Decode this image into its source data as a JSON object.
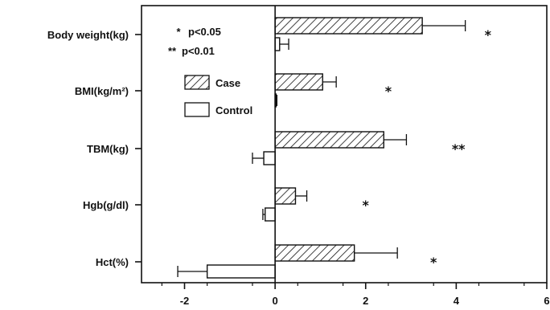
{
  "chart_data": {
    "type": "bar",
    "orientation": "horizontal",
    "categories": [
      "Body weight(kg)",
      "BMI(kg/m²)",
      "TBM(kg)",
      "Hgb(g/dl)",
      "Hct(%)"
    ],
    "series": [
      {
        "name": "Case",
        "pattern": "hatched",
        "values": [
          3.25,
          1.05,
          2.4,
          0.45,
          1.75
        ],
        "error": [
          0.95,
          0.3,
          0.5,
          0.25,
          0.95
        ]
      },
      {
        "name": "Control",
        "pattern": "open",
        "values": [
          0.1,
          0.02,
          -0.25,
          -0.22,
          -1.5
        ],
        "error": [
          0.2,
          0.02,
          0.25,
          0.05,
          0.65
        ]
      }
    ],
    "significance": [
      "*",
      "*",
      "**",
      "*",
      "*"
    ],
    "xticks": [
      "-2",
      "0",
      "2",
      "4",
      "6"
    ],
    "xlim": [
      -2.95,
      6
    ],
    "xlabel": "",
    "ylabel": "",
    "title": "",
    "legend": {
      "notes": [
        {
          "symbol": "*",
          "text": "p<0.05"
        },
        {
          "symbol": "**",
          "text": "p<0.01"
        }
      ],
      "entries": [
        "Case",
        "Control"
      ],
      "placement": "top-left"
    },
    "grid": false
  }
}
